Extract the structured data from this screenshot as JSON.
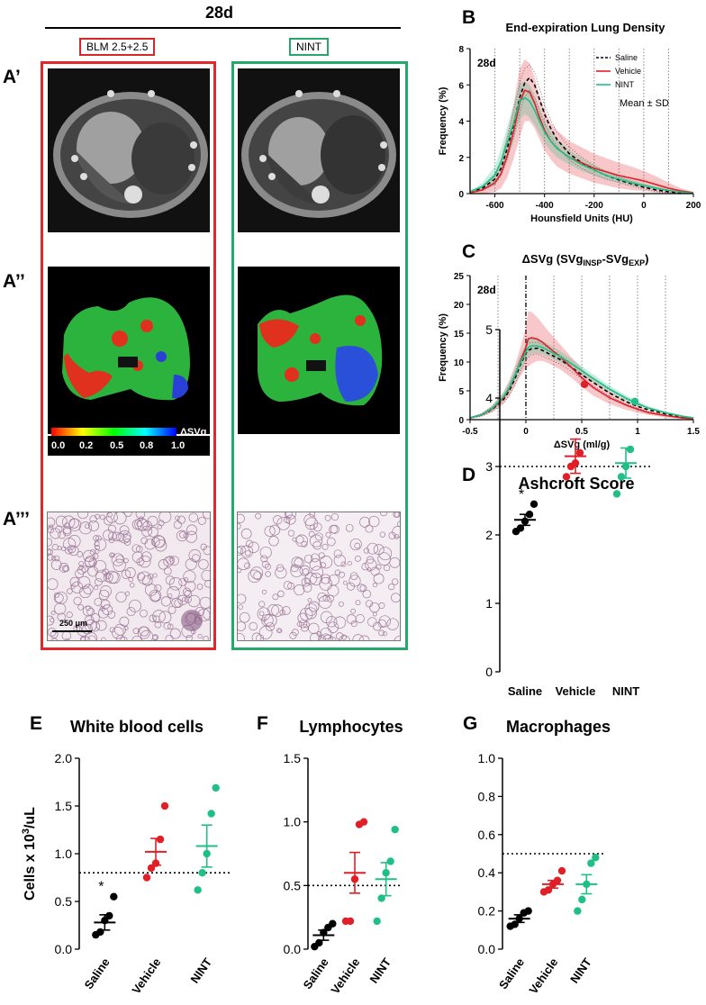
{
  "header": {
    "time_label": "28d"
  },
  "panel_letters": {
    "a1": "A’",
    "a2": "A’’",
    "a3": "A’’’",
    "b": "B",
    "c": "C",
    "d": "D",
    "e": "E",
    "f": "F",
    "g": "G"
  },
  "groups": {
    "blm": {
      "label": "BLM 2.5+2.5",
      "color": "#d62728"
    },
    "nint": {
      "label": "NINT",
      "color": "#27a76a"
    }
  },
  "colorbar": {
    "label": "ΔSVg",
    "ticks": [
      "0.0",
      "0.2",
      "0.5",
      "0.8",
      "1.0"
    ]
  },
  "scalebar": {
    "label": "250 μm"
  },
  "colors": {
    "saline": "#000000",
    "vehicle": "#e01f26",
    "nint": "#1fbf86"
  },
  "chart_data": [
    {
      "id": "B",
      "type": "line",
      "title": "End-expiration Lung Density",
      "xlabel": "Hounsfield Units (HU)",
      "ylabel": "Frequency (%)",
      "xlim": [
        -700,
        200
      ],
      "ylim": [
        0,
        8
      ],
      "xticks": [
        -600,
        -400,
        -200,
        0,
        200
      ],
      "yticks": [
        0,
        2,
        4,
        6,
        8
      ],
      "vgrid": [
        -600,
        -500,
        -400,
        -300,
        -200,
        -100,
        0,
        100
      ],
      "annotation": "28d",
      "note": "Mean ± SD",
      "legend": "top-right",
      "x": [
        -700,
        -650,
        -600,
        -575,
        -550,
        -525,
        -500,
        -480,
        -460,
        -440,
        -420,
        -400,
        -375,
        -350,
        -300,
        -250,
        -200,
        -150,
        -100,
        -50,
        0,
        50,
        100,
        150,
        200
      ],
      "series": [
        {
          "name": "Saline",
          "style": "dashed",
          "values": [
            0.1,
            0.3,
            0.8,
            1.4,
            2.5,
            3.8,
            5.3,
            6.1,
            6.4,
            6.0,
            5.2,
            4.4,
            3.6,
            3.0,
            2.2,
            1.7,
            1.3,
            1.0,
            0.75,
            0.55,
            0.35,
            0.2,
            0.1,
            0.05,
            0.02
          ],
          "sd": [
            0.05,
            0.1,
            0.3,
            0.4,
            0.6,
            0.7,
            0.8,
            0.8,
            0.7,
            0.7,
            0.6,
            0.5,
            0.45,
            0.4,
            0.35,
            0.3,
            0.25,
            0.2,
            0.15,
            0.12,
            0.1,
            0.08,
            0.05,
            0.03,
            0.02
          ]
        },
        {
          "name": "Vehicle",
          "style": "solid",
          "values": [
            0.05,
            0.2,
            0.6,
            1.1,
            2.1,
            3.4,
            5.0,
            5.7,
            5.6,
            5.0,
            4.2,
            3.5,
            2.9,
            2.5,
            2.0,
            1.7,
            1.4,
            1.2,
            1.0,
            0.85,
            0.7,
            0.5,
            0.3,
            0.15,
            0.05
          ],
          "sd": [
            0.05,
            0.2,
            0.5,
            0.8,
            1.2,
            1.5,
            1.9,
            1.7,
            1.6,
            1.4,
            1.2,
            1.1,
            1.0,
            1.0,
            0.9,
            0.85,
            0.8,
            0.75,
            0.7,
            0.65,
            0.55,
            0.45,
            0.3,
            0.15,
            0.05
          ]
        },
        {
          "name": "NINT",
          "style": "solid",
          "values": [
            0.1,
            0.4,
            1.0,
            1.8,
            2.8,
            3.9,
            5.1,
            5.3,
            5.1,
            4.6,
            4.0,
            3.4,
            2.9,
            2.5,
            2.0,
            1.6,
            1.3,
            1.0,
            0.8,
            0.6,
            0.45,
            0.3,
            0.18,
            0.08,
            0.03
          ],
          "sd": [
            0.05,
            0.2,
            0.5,
            0.7,
            0.9,
            1.0,
            1.0,
            0.9,
            0.9,
            0.8,
            0.7,
            0.6,
            0.55,
            0.5,
            0.4,
            0.35,
            0.3,
            0.25,
            0.2,
            0.15,
            0.12,
            0.1,
            0.07,
            0.04,
            0.02
          ]
        }
      ]
    },
    {
      "id": "C",
      "type": "line",
      "title": "ΔSVg (SVg",
      "title_sub1": "INSP",
      "title_mid": "-SVg",
      "title_sub2": "EXP",
      "title_end": ")",
      "xlabel": "ΔSVg (ml/g)",
      "ylabel": "Frequency (%)",
      "xlim": [
        -0.5,
        1.5
      ],
      "ylim": [
        0,
        25
      ],
      "xticks": [
        -0.5,
        0.0,
        0.5,
        1.0,
        1.5
      ],
      "yticks": [
        0,
        5,
        10,
        15,
        20,
        25
      ],
      "vgrid": [
        -0.25,
        0.25,
        0.5,
        0.75,
        1.0,
        1.25
      ],
      "zero_line": 0.0,
      "annotation": "28d",
      "x": [
        -0.5,
        -0.4,
        -0.3,
        -0.2,
        -0.15,
        -0.1,
        -0.05,
        0.0,
        0.02,
        0.05,
        0.1,
        0.15,
        0.2,
        0.3,
        0.4,
        0.5,
        0.6,
        0.75,
        0.9,
        1.0,
        1.1,
        1.25,
        1.4,
        1.5
      ],
      "series": [
        {
          "name": "Saline",
          "style": "dashed",
          "values": [
            0.3,
            0.8,
            1.8,
            3.5,
            5.0,
            7.0,
            9.5,
            11.5,
            12.0,
            12.3,
            12.4,
            12.0,
            11.5,
            10.5,
            9.2,
            7.8,
            6.5,
            4.6,
            3.1,
            2.3,
            1.7,
            1.0,
            0.5,
            0.3
          ],
          "sd": [
            0.1,
            0.2,
            0.4,
            0.6,
            0.8,
            1.0,
            1.2,
            1.2,
            1.2,
            1.1,
            1.0,
            1.0,
            0.9,
            0.8,
            0.7,
            0.7,
            0.6,
            0.5,
            0.4,
            0.3,
            0.3,
            0.2,
            0.1,
            0.1
          ]
        },
        {
          "name": "Vehicle",
          "style": "solid",
          "values": [
            0.3,
            0.8,
            1.9,
            3.8,
            5.4,
            7.5,
            10.0,
            12.5,
            14.0,
            14.2,
            14.0,
            13.4,
            12.6,
            11.0,
            9.2,
            7.3,
            5.6,
            3.8,
            2.5,
            1.8,
            1.2,
            0.7,
            0.3,
            0.2
          ],
          "sd": [
            0.1,
            0.3,
            0.6,
            1.0,
            1.4,
            1.8,
            2.5,
            3.5,
            4.8,
            4.5,
            3.8,
            3.2,
            2.8,
            2.2,
            1.8,
            1.6,
            1.4,
            1.1,
            0.8,
            0.6,
            0.4,
            0.3,
            0.15,
            0.1
          ]
        },
        {
          "name": "NINT",
          "style": "solid",
          "values": [
            0.3,
            0.8,
            2.0,
            4.0,
            5.5,
            7.6,
            9.8,
            11.7,
            12.5,
            12.8,
            12.8,
            12.5,
            12.0,
            11.0,
            9.8,
            8.5,
            7.2,
            5.3,
            3.7,
            2.8,
            2.0,
            1.2,
            0.6,
            0.3
          ],
          "sd": [
            0.1,
            0.2,
            0.5,
            0.8,
            1.0,
            1.2,
            1.4,
            1.5,
            1.5,
            1.4,
            1.3,
            1.2,
            1.1,
            1.0,
            0.9,
            0.8,
            0.7,
            0.6,
            0.5,
            0.4,
            0.3,
            0.2,
            0.15,
            0.1
          ]
        }
      ]
    },
    {
      "id": "D",
      "type": "scatter",
      "title": "Ashcroft Score",
      "ylabel": "",
      "categories": [
        "Saline",
        "Vehicle",
        "NINT"
      ],
      "ylim": [
        0,
        5
      ],
      "yticks": [
        0,
        1,
        2,
        3,
        4,
        5
      ],
      "ytick_labels": [
        "0",
        "1",
        "2",
        "3",
        "4",
        "5"
      ],
      "reference_line": 3.0,
      "significance": [
        "*",
        "",
        ""
      ],
      "xlabel_rotation": 0,
      "series": [
        {
          "name": "Saline",
          "points": [
            2.05,
            2.1,
            2.2,
            2.3,
            2.45
          ],
          "mean": 2.22,
          "sem": 0.08
        },
        {
          "name": "Vehicle",
          "points": [
            2.85,
            3.0,
            3.05,
            3.2,
            4.2
          ],
          "mean": 3.15,
          "sem": 0.25
        },
        {
          "name": "NINT",
          "points": [
            2.6,
            2.85,
            3.0,
            3.25,
            3.95
          ],
          "mean": 3.05,
          "sem": 0.22
        }
      ]
    },
    {
      "id": "E",
      "type": "scatter",
      "title": "White blood cells",
      "ylabel": "Cells x 10",
      "ylabel_sup": "3",
      "ylabel_tail": "/uL",
      "categories": [
        "Saline",
        "Vehicle",
        "NINT"
      ],
      "ylim": [
        0,
        2.0
      ],
      "yticks": [
        0,
        0.5,
        1.0,
        1.5,
        2.0
      ],
      "ytick_labels": [
        "0.0",
        "0.5",
        "1.0",
        "1.5",
        "2.0"
      ],
      "reference_line": 0.8,
      "significance": [
        "*",
        "",
        ""
      ],
      "xlabel_rotation": -55,
      "series": [
        {
          "name": "Saline",
          "points": [
            0.15,
            0.18,
            0.3,
            0.35,
            0.55
          ],
          "mean": 0.28,
          "sem": 0.08
        },
        {
          "name": "Vehicle",
          "points": [
            0.75,
            0.85,
            0.9,
            1.15,
            1.5
          ],
          "mean": 1.02,
          "sem": 0.14
        },
        {
          "name": "NINT",
          "points": [
            0.62,
            0.8,
            1.0,
            1.42,
            1.69
          ],
          "mean": 1.08,
          "sem": 0.22
        }
      ]
    },
    {
      "id": "F",
      "type": "scatter",
      "title": "Lymphocytes",
      "ylabel": "",
      "categories": [
        "Saline",
        "Vehicle",
        "NINT"
      ],
      "ylim": [
        0,
        1.5
      ],
      "yticks": [
        0,
        0.5,
        1.0,
        1.5
      ],
      "ytick_labels": [
        "0.0",
        "0.5",
        "1.0",
        "1.5"
      ],
      "reference_line": 0.5,
      "significance": [
        "",
        "",
        ""
      ],
      "xlabel_rotation": -55,
      "series": [
        {
          "name": "Saline",
          "points": [
            0.02,
            0.05,
            0.13,
            0.17,
            0.2
          ],
          "mean": 0.11,
          "sem": 0.04
        },
        {
          "name": "Vehicle",
          "points": [
            0.22,
            0.22,
            0.55,
            0.98,
            1.0
          ],
          "mean": 0.6,
          "sem": 0.16
        },
        {
          "name": "NINT",
          "points": [
            0.22,
            0.4,
            0.6,
            0.69,
            0.94
          ],
          "mean": 0.55,
          "sem": 0.13
        }
      ]
    },
    {
      "id": "G",
      "type": "scatter",
      "title": "Macrophages",
      "ylabel": "",
      "categories": [
        "Saline",
        "Vehicle",
        "NINT"
      ],
      "ylim": [
        0,
        1.0
      ],
      "yticks": [
        0,
        0.2,
        0.4,
        0.6,
        0.8,
        1.0
      ],
      "ytick_labels": [
        "0.0",
        "0.2",
        "0.4",
        "0.6",
        "0.8",
        "1.0"
      ],
      "reference_line": 0.5,
      "significance": [
        "",
        "",
        ""
      ],
      "xlabel_rotation": -55,
      "series": [
        {
          "name": "Saline",
          "points": [
            0.12,
            0.13,
            0.16,
            0.19,
            0.2
          ],
          "mean": 0.16,
          "sem": 0.02
        },
        {
          "name": "Vehicle",
          "points": [
            0.3,
            0.31,
            0.34,
            0.36,
            0.41
          ],
          "mean": 0.34,
          "sem": 0.02
        },
        {
          "name": "NINT",
          "points": [
            0.2,
            0.26,
            0.34,
            0.45,
            0.48
          ],
          "mean": 0.34,
          "sem": 0.05
        }
      ]
    }
  ]
}
